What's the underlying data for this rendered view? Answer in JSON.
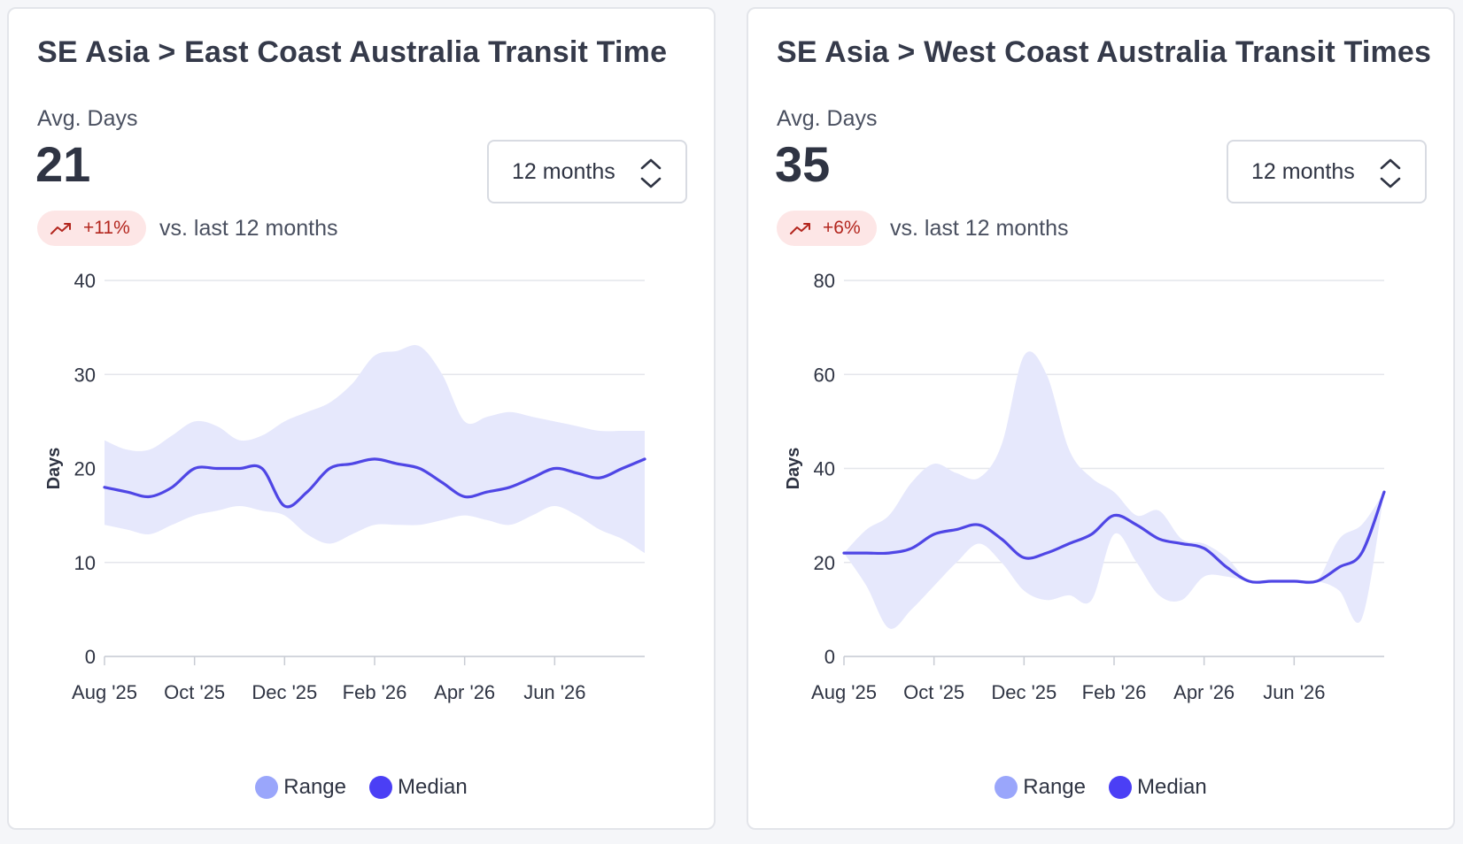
{
  "colors": {
    "range_fill": "#e6e8fc",
    "range_swatch": "#9aa6fb",
    "median_line": "#4f46e5",
    "median_swatch": "#4b3ff5",
    "grid": "#e4e6eb",
    "badge_bg": "#fde6e6",
    "badge_text": "#b3261e"
  },
  "cards": [
    {
      "title": "SE Asia > East Coast Australia Transit Time",
      "kpi_label": "Avg. Days",
      "kpi_value": "21",
      "period_select": {
        "value": "12 months",
        "icon": "chevron-up-down-icon"
      },
      "delta": {
        "value": "+11%",
        "icon": "trending-up-icon",
        "caption": "vs. last 12 months"
      },
      "legend": [
        {
          "label": "Range"
        },
        {
          "label": "Median"
        }
      ]
    },
    {
      "title": "SE Asia > West Coast Australia Transit Times",
      "kpi_label": "Avg. Days",
      "kpi_value": "35",
      "period_select": {
        "value": "12 months",
        "icon": "chevron-up-down-icon"
      },
      "delta": {
        "value": "+6%",
        "icon": "trending-up-icon",
        "caption": "vs. last 12 months"
      },
      "legend": [
        {
          "label": "Range"
        },
        {
          "label": "Median"
        }
      ]
    }
  ],
  "chart_data": [
    {
      "type": "area",
      "ylabel": "Days",
      "ylim": [
        0,
        40
      ],
      "yticks": [
        0,
        10,
        20,
        30,
        40
      ],
      "grid": true,
      "legend_placement": "bottom-center",
      "x_tick_labels": [
        "Aug '25",
        "Oct '25",
        "Dec '25",
        "Feb '26",
        "Apr '26",
        "Jun '26"
      ],
      "x_tick_months": [
        0,
        2,
        4,
        6,
        8,
        10
      ],
      "x_months": [
        0,
        0.5,
        1,
        1.5,
        2,
        2.5,
        3,
        3.5,
        4,
        4.5,
        5,
        5.5,
        6,
        6.5,
        7,
        7.5,
        8,
        8.5,
        9,
        9.5,
        10,
        10.5,
        11,
        11.5,
        12
      ],
      "series": [
        {
          "name": "Range",
          "kind": "band",
          "low": [
            14,
            13.5,
            13,
            14,
            15,
            15.5,
            16,
            15.5,
            15,
            13,
            12,
            13,
            14,
            14,
            14,
            14.5,
            15,
            14.5,
            14,
            15,
            16,
            15,
            13.5,
            12.5,
            11
          ],
          "high": [
            23,
            22,
            22,
            23.5,
            25,
            24.5,
            23,
            23.5,
            25,
            26,
            27,
            29,
            32,
            32.5,
            33,
            30,
            25,
            25.5,
            26,
            25.5,
            25,
            24.5,
            24,
            24,
            24
          ]
        },
        {
          "name": "Median",
          "kind": "line",
          "values": [
            18,
            17.5,
            17,
            18,
            20,
            20,
            20,
            20,
            16,
            17.5,
            20,
            20.5,
            21,
            20.5,
            20,
            18.5,
            17,
            17.5,
            18,
            19,
            20,
            19.5,
            19,
            20,
            21
          ]
        }
      ]
    },
    {
      "type": "area",
      "ylabel": "Days",
      "ylim": [
        0,
        80
      ],
      "yticks": [
        0,
        20,
        40,
        60,
        80
      ],
      "grid": true,
      "legend_placement": "bottom-center",
      "x_tick_labels": [
        "Aug '25",
        "Oct '25",
        "Dec '25",
        "Feb '26",
        "Apr '26",
        "Jun '26"
      ],
      "x_tick_months": [
        0,
        2,
        4,
        6,
        8,
        10
      ],
      "x_months": [
        0,
        0.5,
        1,
        1.5,
        2,
        2.5,
        3,
        3.5,
        4,
        4.5,
        5,
        5.5,
        6,
        6.5,
        7,
        7.5,
        8,
        8.5,
        9,
        9.5,
        10,
        10.5,
        11,
        11.5,
        12
      ],
      "series": [
        {
          "name": "Range",
          "kind": "band",
          "low": [
            22,
            15,
            6,
            10,
            15,
            20,
            24,
            20,
            14,
            12,
            13,
            12,
            26,
            20,
            13,
            12,
            17,
            17,
            16,
            16,
            16,
            16,
            14,
            8,
            35
          ],
          "high": [
            22,
            27,
            30,
            37,
            41,
            39,
            38,
            45,
            64,
            60,
            44,
            38,
            35,
            30,
            31,
            25,
            24,
            21,
            16,
            16,
            16,
            16,
            25,
            28,
            35
          ]
        },
        {
          "name": "Median",
          "kind": "line",
          "values": [
            22,
            22,
            22,
            23,
            26,
            27,
            28,
            25,
            21,
            22,
            24,
            26,
            30,
            28,
            25,
            24,
            23,
            19,
            16,
            16,
            16,
            16,
            19,
            22,
            35
          ]
        }
      ]
    }
  ]
}
